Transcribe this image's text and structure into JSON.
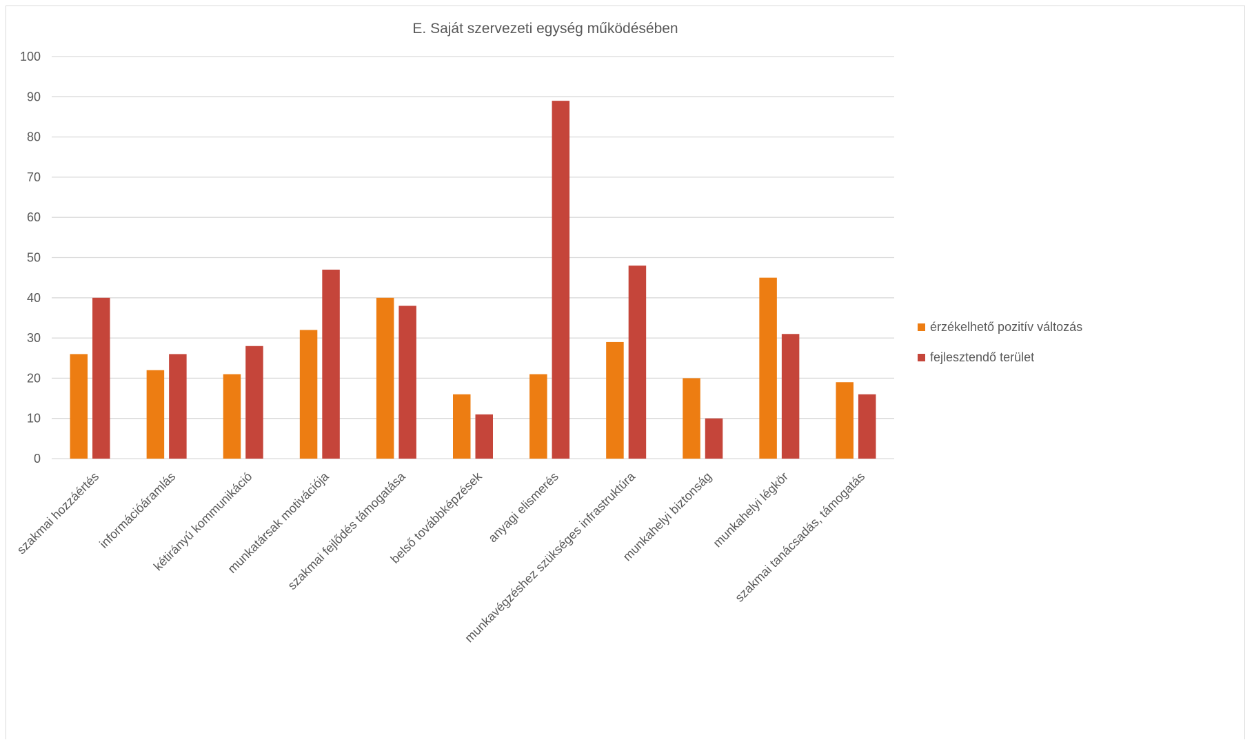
{
  "chart_data": {
    "type": "bar",
    "title": "E. Saját szervezeti egység működésében",
    "xlabel": "",
    "ylabel": "",
    "ylim": [
      0,
      100
    ],
    "yticks": [
      0,
      10,
      20,
      30,
      40,
      50,
      60,
      70,
      80,
      90,
      100
    ],
    "grid": true,
    "legend_position": "right",
    "categories": [
      "szakmai hozzáértés",
      "információáramlás",
      "kétirányú kommunikáció",
      "munkatársak motivációja",
      "szakmai fejlődés támogatása",
      "belső továbbképzések",
      "anyagi elismerés",
      "munkavégzéshez szükséges infrastruktúra",
      "munkahelyi biztonság",
      "munkahelyi légkör",
      "szakmai tanácsadás, támogatás"
    ],
    "series": [
      {
        "name": "érzékelhető pozitív változás",
        "color": "#ED7D12",
        "values": [
          26,
          22,
          21,
          32,
          40,
          16,
          21,
          29,
          20,
          45,
          19
        ]
      },
      {
        "name": "fejlesztendő terület",
        "color": "#C5453A",
        "values": [
          40,
          26,
          28,
          47,
          38,
          11,
          89,
          48,
          10,
          31,
          16
        ]
      }
    ]
  },
  "style": {
    "grid_color": "#d9d9d9",
    "text_color": "#595959"
  }
}
